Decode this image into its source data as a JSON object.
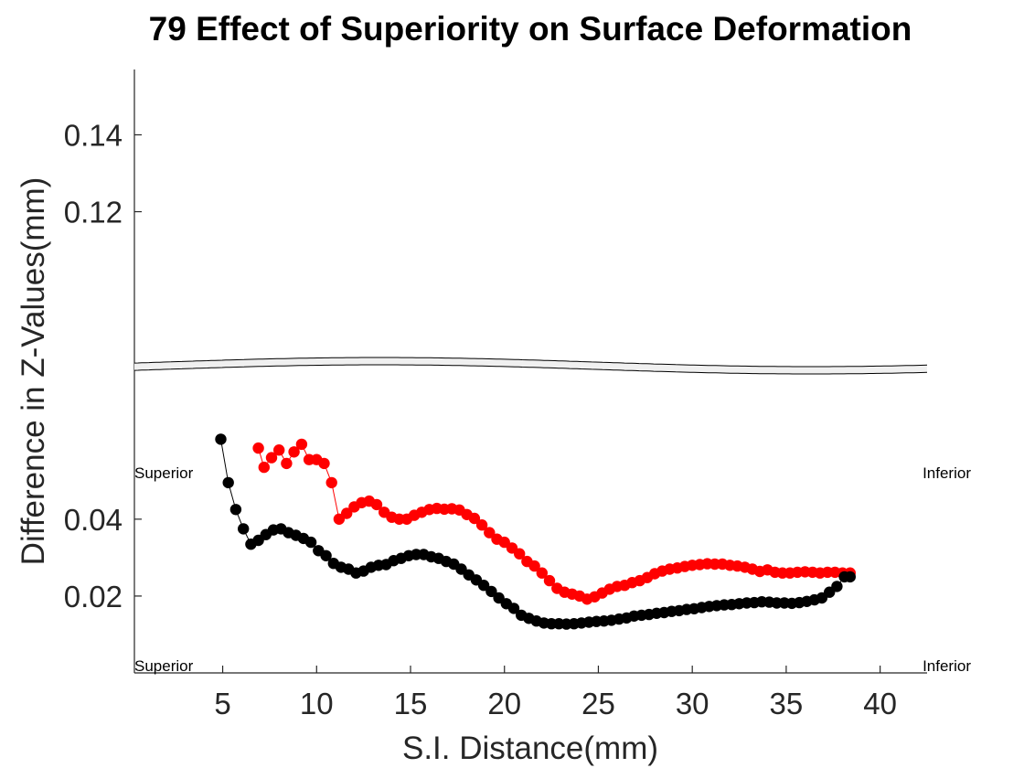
{
  "chart_data": {
    "type": "scatter",
    "title": "79  Effect of Superiority on Surface Deformation",
    "xlabel": "S.I. Distance(mm)",
    "ylabel": "Difference in Z-Values(mm)",
    "xlim": [
      0.3,
      42.5
    ],
    "ylim": [
      0.0,
      0.157
    ],
    "xticks": [
      5,
      10,
      15,
      20,
      25,
      30,
      35,
      40
    ],
    "xtick_labels": [
      "5",
      "10",
      "15",
      "20",
      "25",
      "30",
      "35",
      "40"
    ],
    "yticks": [
      0.02,
      0.04,
      0.12,
      0.14
    ],
    "ytick_labels": [
      "0.02",
      "0.04",
      "0.12",
      "0.14"
    ],
    "axis_break": "between 0.04 and 0.12",
    "grid": false,
    "legend": "none",
    "annotations": [
      {
        "text": "Superior",
        "position": "left, upper"
      },
      {
        "text": "Inferior",
        "position": "right, upper"
      },
      {
        "text": "Superior",
        "position": "left, bottom"
      },
      {
        "text": "Inferior",
        "position": "right, bottom"
      }
    ],
    "series": [
      {
        "color": "#ff0000",
        "marker": "circle",
        "x": [
          6.9,
          7.2,
          7.6,
          8.0,
          8.4,
          8.8,
          9.2,
          9.6,
          10.0,
          10.4,
          10.8,
          11.2,
          11.6,
          12.0,
          12.4,
          12.8,
          13.2,
          13.6,
          14.0,
          14.4,
          14.8,
          15.2,
          15.6,
          16.0,
          16.4,
          16.8,
          17.2,
          17.6,
          18.0,
          18.4,
          18.8,
          19.2,
          19.6,
          20.0,
          20.4,
          20.8,
          21.2,
          21.6,
          22.0,
          22.4,
          22.8,
          23.2,
          23.6,
          24.0,
          24.4,
          24.8,
          25.2,
          25.6,
          26.0,
          26.4,
          26.8,
          27.2,
          27.6,
          28.0,
          28.4,
          28.8,
          29.2,
          29.6,
          30.0,
          30.4,
          30.8,
          31.2,
          31.6,
          32.0,
          32.4,
          32.8,
          33.2,
          33.6,
          34.0,
          34.4,
          34.8,
          35.2,
          35.6,
          36.0,
          36.4,
          36.8,
          37.2,
          37.6,
          38.0,
          38.4
        ],
        "y": [
          0.0585,
          0.0535,
          0.056,
          0.058,
          0.0545,
          0.0575,
          0.0595,
          0.0555,
          0.0555,
          0.0545,
          0.0495,
          0.04,
          0.0415,
          0.0432,
          0.0443,
          0.0447,
          0.0438,
          0.0418,
          0.0405,
          0.04,
          0.04,
          0.041,
          0.0418,
          0.0425,
          0.0428,
          0.0426,
          0.0427,
          0.0424,
          0.0412,
          0.0402,
          0.0385,
          0.0365,
          0.0348,
          0.034,
          0.0325,
          0.031,
          0.029,
          0.0278,
          0.026,
          0.024,
          0.022,
          0.021,
          0.0205,
          0.02,
          0.0192,
          0.0198,
          0.0208,
          0.0218,
          0.0225,
          0.0228,
          0.0235,
          0.024,
          0.0248,
          0.0258,
          0.0265,
          0.027,
          0.0273,
          0.0277,
          0.028,
          0.0282,
          0.0284,
          0.0283,
          0.0283,
          0.028,
          0.0278,
          0.0275,
          0.027,
          0.0264,
          0.0268,
          0.0262,
          0.026,
          0.026,
          0.0262,
          0.0263,
          0.0262,
          0.026,
          0.0262,
          0.0262,
          0.026,
          0.026
        ]
      },
      {
        "color": "#000000",
        "marker": "circle",
        "x": [
          4.9,
          5.3,
          5.7,
          6.1,
          6.5,
          6.9,
          7.3,
          7.7,
          8.1,
          8.5,
          8.9,
          9.3,
          9.7,
          10.1,
          10.5,
          10.9,
          11.3,
          11.7,
          12.1,
          12.5,
          12.9,
          13.3,
          13.7,
          14.1,
          14.5,
          14.9,
          15.3,
          15.7,
          16.1,
          16.5,
          16.9,
          17.3,
          17.7,
          18.1,
          18.5,
          18.9,
          19.3,
          19.7,
          20.1,
          20.5,
          20.9,
          21.3,
          21.7,
          22.1,
          22.5,
          22.9,
          23.3,
          23.7,
          24.1,
          24.5,
          24.9,
          25.3,
          25.7,
          26.1,
          26.5,
          26.9,
          27.3,
          27.7,
          28.1,
          28.5,
          28.9,
          29.3,
          29.7,
          30.1,
          30.5,
          30.9,
          31.3,
          31.7,
          32.1,
          32.5,
          32.9,
          33.3,
          33.7,
          34.1,
          34.5,
          34.9,
          35.3,
          35.7,
          36.1,
          36.5,
          36.9,
          37.3,
          37.7,
          38.1,
          38.4
        ],
        "y": [
          0.0608,
          0.0495,
          0.0425,
          0.0375,
          0.0335,
          0.0345,
          0.036,
          0.0372,
          0.0375,
          0.0365,
          0.0358,
          0.035,
          0.034,
          0.0318,
          0.0305,
          0.0285,
          0.0275,
          0.027,
          0.026,
          0.0265,
          0.0275,
          0.028,
          0.0282,
          0.0292,
          0.0298,
          0.0305,
          0.0308,
          0.0308,
          0.0302,
          0.0298,
          0.029,
          0.0283,
          0.027,
          0.0255,
          0.0242,
          0.0228,
          0.0212,
          0.0195,
          0.018,
          0.0168,
          0.015,
          0.0142,
          0.0135,
          0.013,
          0.0128,
          0.0128,
          0.0127,
          0.0128,
          0.013,
          0.0132,
          0.0134,
          0.0135,
          0.0137,
          0.014,
          0.0143,
          0.0148,
          0.015,
          0.0152,
          0.0155,
          0.0157,
          0.016,
          0.0162,
          0.0165,
          0.0167,
          0.017,
          0.0173,
          0.0175,
          0.0177,
          0.0178,
          0.018,
          0.0182,
          0.0183,
          0.0185,
          0.0184,
          0.0182,
          0.0182,
          0.0181,
          0.0183,
          0.0186,
          0.019,
          0.0195,
          0.021,
          0.0225,
          0.025,
          0.025
        ]
      }
    ]
  }
}
